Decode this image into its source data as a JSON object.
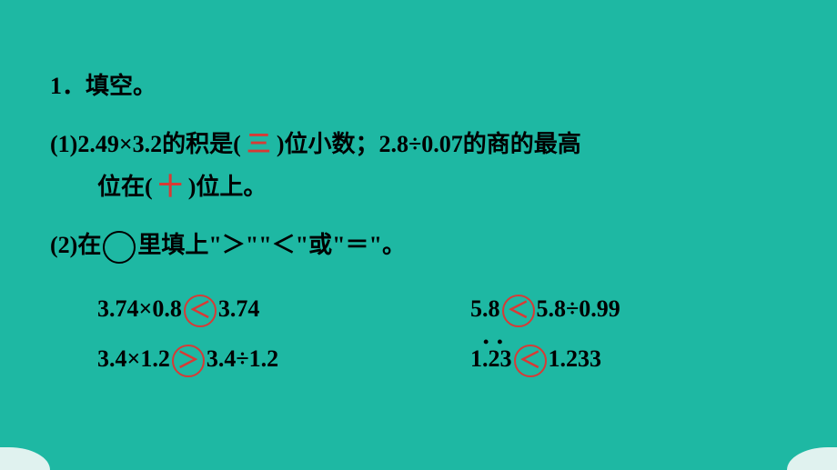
{
  "background_color": "#1eb8a3",
  "text_color": "#000000",
  "answer_color": "#d83a35",
  "corner_color": "#e0f2ef",
  "font_size": 26,
  "q1": {
    "number": "1．",
    "title": "填空。"
  },
  "p1": {
    "label": "(1)",
    "text_a": "2.49×3.2的积是(",
    "answer_a": "三",
    "text_b": ")位小数；2.8÷0.07的商的最高",
    "text_c": "位在(",
    "answer_b": "十",
    "text_d": ")位上。"
  },
  "p2": {
    "label": "(2)",
    "text_a": "在",
    "text_b": "里填上\"＞\"\"＜\"或\"＝\"。",
    "rows": [
      {
        "left_a": "3.74×0.8",
        "left_op": "＜",
        "left_b": "3.74",
        "right_a": "5.8",
        "right_op": "＜",
        "right_b": "5.8÷0.99"
      },
      {
        "left_a": "3.4×1.2",
        "left_op": "＞",
        "left_b": "3.4÷1.2",
        "right_a": "1.23",
        "right_op": "＜",
        "right_b": "1.233",
        "right_a_recurring": true
      }
    ]
  }
}
